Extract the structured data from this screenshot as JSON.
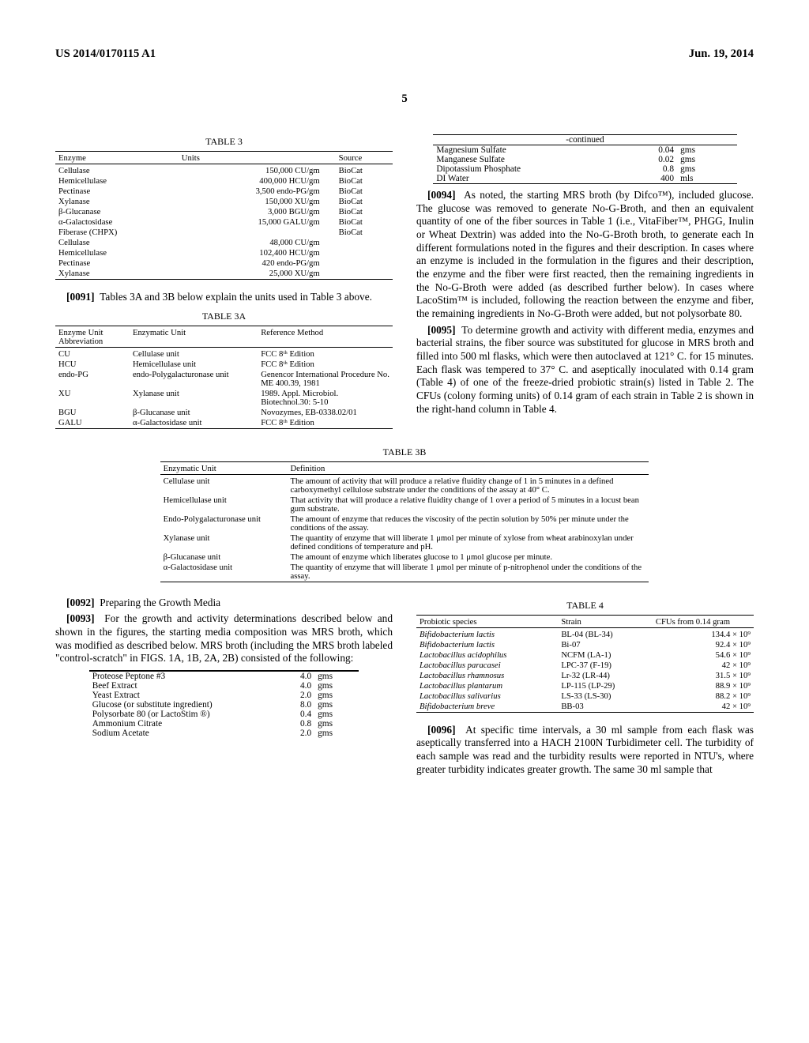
{
  "header": {
    "left": "US 2014/0170115 A1",
    "right": "Jun. 19, 2014"
  },
  "pageNumber": "5",
  "table3": {
    "title": "TABLE 3",
    "headers": [
      "Enzyme",
      "Units",
      "Source"
    ],
    "rows": [
      [
        "Cellulase",
        "150,000 CU/gm",
        "BioCat"
      ],
      [
        "Hemicellulase",
        "400,000 HCU/gm",
        "BioCat"
      ],
      [
        "Pectinase",
        "3,500 endo-PG/gm",
        "BioCat"
      ],
      [
        "Xylanase",
        "150,000 XU/gm",
        "BioCat"
      ],
      [
        "β-Glucanase",
        "3,000 BGU/gm",
        "BioCat"
      ],
      [
        "α-Galactosidase",
        "15,000 GALU/gm",
        "BioCat"
      ],
      [
        "Fiberase (CHPX)",
        "",
        "BioCat"
      ],
      [
        "Cellulase",
        "48,000 CU/gm",
        ""
      ],
      [
        "Hemicellulase",
        "102,400 HCU/gm",
        ""
      ],
      [
        "Pectinase",
        "420 endo-PG/gm",
        ""
      ],
      [
        "Xylanase",
        "25,000 XU/gm",
        ""
      ]
    ]
  },
  "para91": {
    "num": "[0091]",
    "text": "Tables 3A and 3B below explain the units used in Table 3 above."
  },
  "table3a": {
    "title": "TABLE 3A",
    "headers": [
      "Enzyme Unit Abbreviation",
      "Enzymatic Unit",
      "Reference Method"
    ],
    "rows": [
      [
        "CU",
        "Cellulase unit",
        "FCC 8ᵗʰ Edition"
      ],
      [
        "HCU",
        "Hemicellulase unit",
        "FCC 8ᵗʰ Edition"
      ],
      [
        "endo-PG",
        "endo-Polygalacturonase unit",
        "Genencor International Procedure No. ME 400.39, 1981"
      ],
      [
        "XU",
        "Xylanase unit",
        "1989. Appl. Microbiol. Biotechnol.30: 5-10"
      ],
      [
        "BGU",
        "β-Glucanase unit",
        "Novozymes, EB-0338.02/01"
      ],
      [
        "GALU",
        "α-Galactosidase unit",
        "FCC 8ᵗʰ Edition"
      ]
    ]
  },
  "contTable": {
    "title": "-continued",
    "rows": [
      [
        "Magnesium Sulfate",
        "0.04",
        "gms"
      ],
      [
        "Manganese Sulfate",
        "0.02",
        "gms"
      ],
      [
        "Dipotassium Phosphate",
        "0.8",
        "gms"
      ],
      [
        "DI Water",
        "400",
        "mls"
      ]
    ]
  },
  "para94": {
    "num": "[0094]",
    "text": "As noted, the starting MRS broth (by Difco™), included glucose. The glucose was removed to generate No-G-Broth, and then an equivalent quantity of one of the fiber sources in Table 1 (i.e., VitaFiber™, PHGG, Inulin or Wheat Dextrin) was added into the No-G-Broth broth, to generate each In different formulations noted in the figures and their description. In cases where an enzyme is included in the formulation in the figures and their description, the enzyme and the fiber were first reacted, then the remaining ingredients in the No-G-Broth were added (as described further below). In cases where LacoStim™ is included, following the reaction between the enzyme and fiber, the remaining ingredients in No-G-Broth were added, but not polysorbate 80."
  },
  "para95": {
    "num": "[0095]",
    "text": "To determine growth and activity with different media, enzymes and bacterial strains, the fiber source was substituted for glucose in MRS broth and filled into 500 ml flasks, which were then autoclaved at 121° C. for 15 minutes. Each flask was tempered to 37° C. and aseptically inoculated with 0.14 gram (Table 4) of one of the freeze-dried probiotic strain(s) listed in Table 2. The CFUs (colony forming units) of 0.14 gram of each strain in Table 2 is shown in the right-hand column in Table 4."
  },
  "table3b": {
    "title": "TABLE 3B",
    "headers": [
      "Enzymatic Unit",
      "Definition"
    ],
    "rows": [
      [
        "Cellulase unit",
        "The amount of activity that will produce a relative fluidity change of 1 in 5 minutes in a defined carboxymethyl cellulose substrate under the conditions of the assay at 40° C."
      ],
      [
        "Hemicellulase unit",
        "That activity that will produce a relative fluidity change of 1 over a period of 5 minutes in a locust bean gum substrate."
      ],
      [
        "Endo-Polygalacturonase unit",
        "The amount of enzyme that reduces the viscosity of the pectin solution by 50% per minute under the conditions of the assay."
      ],
      [
        "Xylanase unit",
        "The quantity of enzyme that will liberate 1 μmol per minute of xylose from wheat arabinoxylan under defined conditions of temperature and pH."
      ],
      [
        "β-Glucanase unit",
        "The amount of enzyme which liberates glucose to 1 μmol glucose per minute."
      ],
      [
        "α-Galactosidase unit",
        "The quantity of enzyme that will liberate 1 μmol per minute of p-nitrophenol under the conditions of the assay."
      ]
    ]
  },
  "para92": {
    "num": "[0092]",
    "text": "Preparing the Growth Media"
  },
  "para93": {
    "num": "[0093]",
    "text": "For the growth and activity determinations described below and shown in the figures, the starting media composition was MRS broth, which was modified as described below. MRS broth (including the MRS broth labeled \"control-scratch\" in FIGS. 1A, 1B, 2A, 2B) consisted of the following:"
  },
  "ingredients": {
    "rows": [
      [
        "Proteose Peptone #3",
        "4.0",
        "gms"
      ],
      [
        "Beef Extract",
        "4.0",
        "gms"
      ],
      [
        "Yeast Extract",
        "2.0",
        "gms"
      ],
      [
        "Glucose (or substitute ingredient)",
        "8.0",
        "gms"
      ],
      [
        "Polysorbate 80 (or LactoStim ®)",
        "0.4",
        "gms"
      ],
      [
        "Ammonium Citrate",
        "0.8",
        "gms"
      ],
      [
        "Sodium Acetate",
        "2.0",
        "gms"
      ]
    ]
  },
  "table4": {
    "title": "TABLE 4",
    "headers": [
      "Probiotic species",
      "Strain",
      "CFUs from 0.14 gram"
    ],
    "rows": [
      [
        "Bifidobacterium lactis",
        "BL-04 (BL-34)",
        "134.4 × 10⁹"
      ],
      [
        "Bifidobacterium lactis",
        "Bi-07",
        "92.4 × 10⁹"
      ],
      [
        "Lactobacillus acidophilus",
        "NCFM (LA-1)",
        "54.6 × 10⁹"
      ],
      [
        "Lactobacillus paracasei",
        "LPC-37 (F-19)",
        "42 × 10⁹"
      ],
      [
        "Lactobacillus rhamnosus",
        "Lr-32 (LR-44)",
        "31.5 × 10⁹"
      ],
      [
        "Lactobacillus plantarum",
        "LP-115 (LP-29)",
        "88.9 × 10⁹"
      ],
      [
        "Lactobacillus salivarius",
        "LS-33 (LS-30)",
        "88.2 × 10⁹"
      ],
      [
        "Bifidobacterium breve",
        "BB-03",
        "42 × 10⁹"
      ]
    ]
  },
  "para96": {
    "num": "[0096]",
    "text": "At specific time intervals, a 30 ml sample from each flask was aseptically transferred into a HACH 2100N Turbidimeter cell. The turbidity of each sample was read and the turbidity results were reported in NTU's, where greater turbidity indicates greater growth. The same 30 ml sample that"
  }
}
